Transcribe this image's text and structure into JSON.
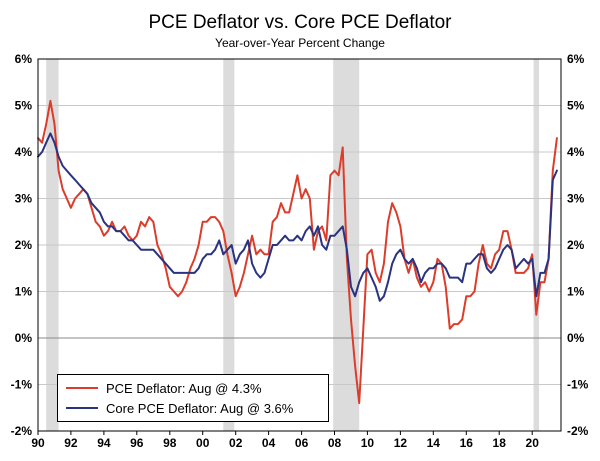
{
  "header": {
    "title": "PCE Deflator vs. Core PCE Deflator",
    "subtitle": "Year-over-Year Percent Change"
  },
  "legend": {
    "pce_label": "PCE Deflator: Aug @ 4.3%",
    "core_label": "Core PCE Deflator: Aug @ 3.6%"
  },
  "chart_data": {
    "type": "line",
    "title": "PCE Deflator vs. Core PCE Deflator",
    "subtitle": "Year-over-Year Percent Change",
    "xlabel": "",
    "ylabel": "Year-over-Year Percent Change",
    "xlim": [
      1990,
      2021.75
    ],
    "ylim": [
      -2,
      6
    ],
    "y_tick_step": 1,
    "y_tick_suffix": "%",
    "grid": "horizontal",
    "legend_position": "bottom-left",
    "x_start": 1990,
    "x_step": 0.25,
    "x_ticks": [
      1990,
      1992,
      1994,
      1996,
      1998,
      2000,
      2002,
      2004,
      2006,
      2008,
      2010,
      2012,
      2014,
      2016,
      2018,
      2020
    ],
    "x_tick_labels": [
      "90",
      "92",
      "94",
      "96",
      "98",
      "00",
      "02",
      "04",
      "06",
      "08",
      "10",
      "12",
      "14",
      "16",
      "18",
      "20"
    ],
    "recessions": [
      [
        1990.5,
        1991.25
      ],
      [
        2001.25,
        2001.92
      ],
      [
        2007.92,
        2009.5
      ],
      [
        2020.08,
        2020.42
      ]
    ],
    "colors": {
      "recession": "#dcdcdc",
      "grid": "#c9c9c9",
      "zero_line": "#8a8a8a",
      "frame": "#000000"
    },
    "series": [
      {
        "id": "pce-deflator",
        "name": "PCE Deflator",
        "latest_label": "Aug @ 4.3%",
        "color": "#dc3d2b",
        "width": 2,
        "values": [
          4.3,
          4.2,
          4.6,
          5.1,
          4.6,
          3.6,
          3.2,
          3.0,
          2.8,
          3.0,
          3.1,
          3.2,
          3.1,
          2.8,
          2.5,
          2.4,
          2.2,
          2.3,
          2.5,
          2.3,
          2.3,
          2.4,
          2.2,
          2.1,
          2.2,
          2.5,
          2.4,
          2.6,
          2.5,
          2.0,
          1.8,
          1.5,
          1.1,
          1.0,
          0.9,
          1.0,
          1.2,
          1.5,
          1.7,
          2.0,
          2.5,
          2.5,
          2.6,
          2.6,
          2.5,
          2.3,
          1.8,
          1.4,
          0.9,
          1.1,
          1.4,
          1.8,
          2.2,
          1.8,
          1.9,
          1.8,
          1.8,
          2.5,
          2.6,
          2.9,
          2.7,
          2.7,
          3.1,
          3.5,
          3.0,
          3.2,
          3.0,
          1.9,
          2.3,
          2.4,
          2.1,
          3.5,
          3.6,
          3.5,
          4.1,
          1.7,
          0.4,
          -0.6,
          -1.4,
          0.2,
          1.8,
          1.9,
          1.4,
          1.2,
          1.6,
          2.5,
          2.9,
          2.7,
          2.4,
          1.7,
          1.4,
          1.7,
          1.3,
          1.1,
          1.2,
          1.0,
          1.2,
          1.7,
          1.6,
          1.1,
          0.2,
          0.3,
          0.3,
          0.4,
          0.9,
          0.9,
          1.0,
          1.6,
          2.0,
          1.6,
          1.5,
          1.8,
          1.9,
          2.3,
          2.3,
          1.9,
          1.4,
          1.4,
          1.4,
          1.5,
          1.8,
          0.5,
          1.2,
          1.2,
          1.7,
          3.6,
          4.3
        ]
      },
      {
        "id": "core-pce-deflator",
        "name": "Core PCE Deflator",
        "latest_label": "Aug @ 3.6%",
        "color": "#293380",
        "width": 2,
        "values": [
          3.9,
          4.0,
          4.2,
          4.4,
          4.2,
          3.9,
          3.7,
          3.6,
          3.5,
          3.4,
          3.3,
          3.2,
          3.1,
          2.9,
          2.8,
          2.7,
          2.5,
          2.4,
          2.4,
          2.3,
          2.3,
          2.2,
          2.1,
          2.1,
          2.0,
          1.9,
          1.9,
          1.9,
          1.9,
          1.8,
          1.7,
          1.6,
          1.5,
          1.4,
          1.4,
          1.4,
          1.4,
          1.4,
          1.4,
          1.5,
          1.7,
          1.8,
          1.8,
          1.9,
          2.1,
          1.8,
          1.9,
          2.0,
          1.6,
          1.8,
          1.9,
          2.1,
          1.6,
          1.4,
          1.3,
          1.4,
          1.7,
          2.0,
          2.0,
          2.1,
          2.2,
          2.1,
          2.1,
          2.2,
          2.1,
          2.3,
          2.4,
          2.2,
          2.4,
          2.0,
          1.9,
          2.2,
          2.2,
          2.3,
          2.4,
          1.9,
          1.1,
          0.9,
          1.2,
          1.4,
          1.5,
          1.3,
          1.1,
          0.8,
          0.9,
          1.2,
          1.6,
          1.8,
          1.9,
          1.7,
          1.6,
          1.7,
          1.5,
          1.2,
          1.4,
          1.5,
          1.5,
          1.6,
          1.6,
          1.5,
          1.3,
          1.3,
          1.3,
          1.2,
          1.6,
          1.6,
          1.7,
          1.8,
          1.8,
          1.5,
          1.4,
          1.5,
          1.7,
          1.9,
          2.0,
          1.9,
          1.5,
          1.6,
          1.7,
          1.6,
          1.7,
          0.9,
          1.4,
          1.4,
          1.7,
          3.4,
          3.6
        ]
      }
    ]
  }
}
